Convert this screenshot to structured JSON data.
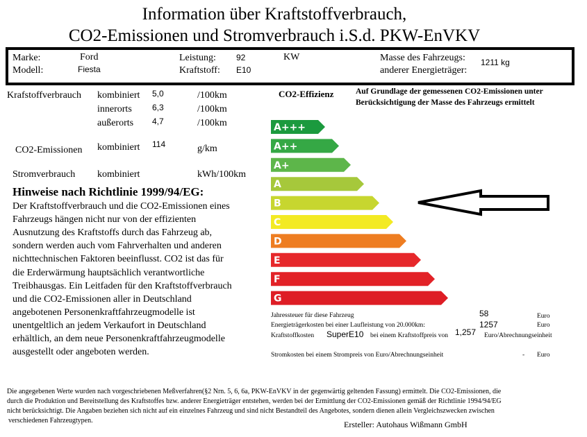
{
  "header": {
    "title_lines": [
      "Information über Kraftstoffverbrauch,",
      "CO2-Emissionen und Stromverbrauch i.S.d. PKW-EnVKV"
    ]
  },
  "vehicle": {
    "brand_label": "Marke:",
    "brand": "Ford",
    "model_label": "Modell:",
    "model": "Fiesta",
    "power_label": "Leistung:",
    "power": "92",
    "power_unit": "KW",
    "fuel_label": "Kraftstoff:",
    "fuel": "E10",
    "mass_label": "Masse des Fahrzeugs:",
    "mass": "1211 kg",
    "other_energy_label": "anderer Energieträger:"
  },
  "consumption": {
    "fuel_label": "Krafstoffverbrauch",
    "rows": [
      {
        "kind": "kombiniert",
        "value": "5,0",
        "unit": "/100km"
      },
      {
        "kind": "innerorts",
        "value": "6,3",
        "unit": "/100km"
      },
      {
        "kind": "außerorts",
        "value": "4,7",
        "unit": "/100km"
      }
    ],
    "co2_label": "CO2-Emissionen",
    "co2_kind": "kombiniert",
    "co2_value": "114",
    "co2_unit": "g/km",
    "power_label": "Stromverbrauch",
    "power_kind": "kombiniert",
    "power_unit": "kWh/100km"
  },
  "notes": {
    "title": "Hinweise nach Richtlinie 1999/94/EG:",
    "lines": [
      "Der Kraftstoffverbrauch und die CO2-Emissionen eines",
      "Fahrzeugs hängen nicht nur von der effizienten",
      "Ausnutzung des Kraftstoffs durch das Fahrzeug ab,",
      "sondern werden auch vom Fahrverhalten und anderen",
      "nichttechnischen Faktoren beeinflusst. CO2 ist das für",
      "die Erderwärmung hauptsächlich verantwortliche",
      "Treibhausgas. Ein Leitfaden für den Kraftstoffverbrauch",
      "und die CO2-Emissionen aller in Deutschland",
      "angebotenen Personenkraftfahrzeugmodelle ist",
      "unentgeltlich an jedem Verkaufort in Deutschland",
      "erhältlich, an dem neue Personenkraftfahrzeugmodelle",
      "ausgestellt oder angeboten werden."
    ]
  },
  "efficiency": {
    "title": "CO2-Effizienz",
    "note_lines": [
      "Auf Grundlage der gemessenen CO2-Emissionen unter",
      "Berücksichtigung der Masse des Fahrzeugs ermittelt"
    ],
    "classes": [
      {
        "label": "A+++",
        "color": "#1b9a3e"
      },
      {
        "label": "A++",
        "color": "#35a845"
      },
      {
        "label": "A+",
        "color": "#5db64a"
      },
      {
        "label": "A",
        "color": "#a6c83b"
      },
      {
        "label": "B",
        "color": "#c7d62f"
      },
      {
        "label": "C",
        "color": "#f3ea23"
      },
      {
        "label": "D",
        "color": "#ee7d21"
      },
      {
        "label": "E",
        "color": "#e6282b"
      },
      {
        "label": "F",
        "color": "#e22227"
      },
      {
        "label": "G",
        "color": "#de1d25"
      }
    ]
  },
  "costs": {
    "tax_label": "Jahressteuer für diese Fahrzeug",
    "tax": "58",
    "tax_unit": "Euro",
    "energy_label": "Energieträgerkosten bei einer Laufleistung von 20.000km:",
    "energy": "1257",
    "energy_unit": "Euro",
    "fuel_label": "Kraftstoffkosten",
    "fuel_type": "SuperE10",
    "fuel_label_rest": "bei einem Kraftstoffpreis von",
    "fuel_price": "1,257",
    "fuel_price_unit": "Euro/Abrechnungseinheit",
    "power_label": "Stromkosten bei einem Strompreis von Euro/Abrechnungseinheit",
    "power": "-",
    "power_unit": "Euro"
  },
  "footer": {
    "lines": [
      "Die angegebenen Werte wurden nach vorgeschriebenen Meßverfahren(§2 Nrn. 5, 6, 6a, PKW-EnVKV in der gegenwärtig geltenden Fassung) ermittelt. Die CO2-Emissionen, die",
      "durch die Produktion und Bereitstellung des Kraftstoffes bzw. anderer Energieträger entstehen, werden bei der Ermittlung der CO2-Emissionen gemäß der Richtlinie 1994/94/EG",
      "nicht berücksichtigt. Die Angaben beziehen sich nicht auf ein einzelnes Fahrzeug und sind nicht Bestandteil des Angebotes, sondern dienen allein Vergleichszwecken zwischen",
      "verschiedenen Fahrzeugtypen."
    ],
    "creator": "Ersteller: Autohaus Wißmann GmbH"
  }
}
